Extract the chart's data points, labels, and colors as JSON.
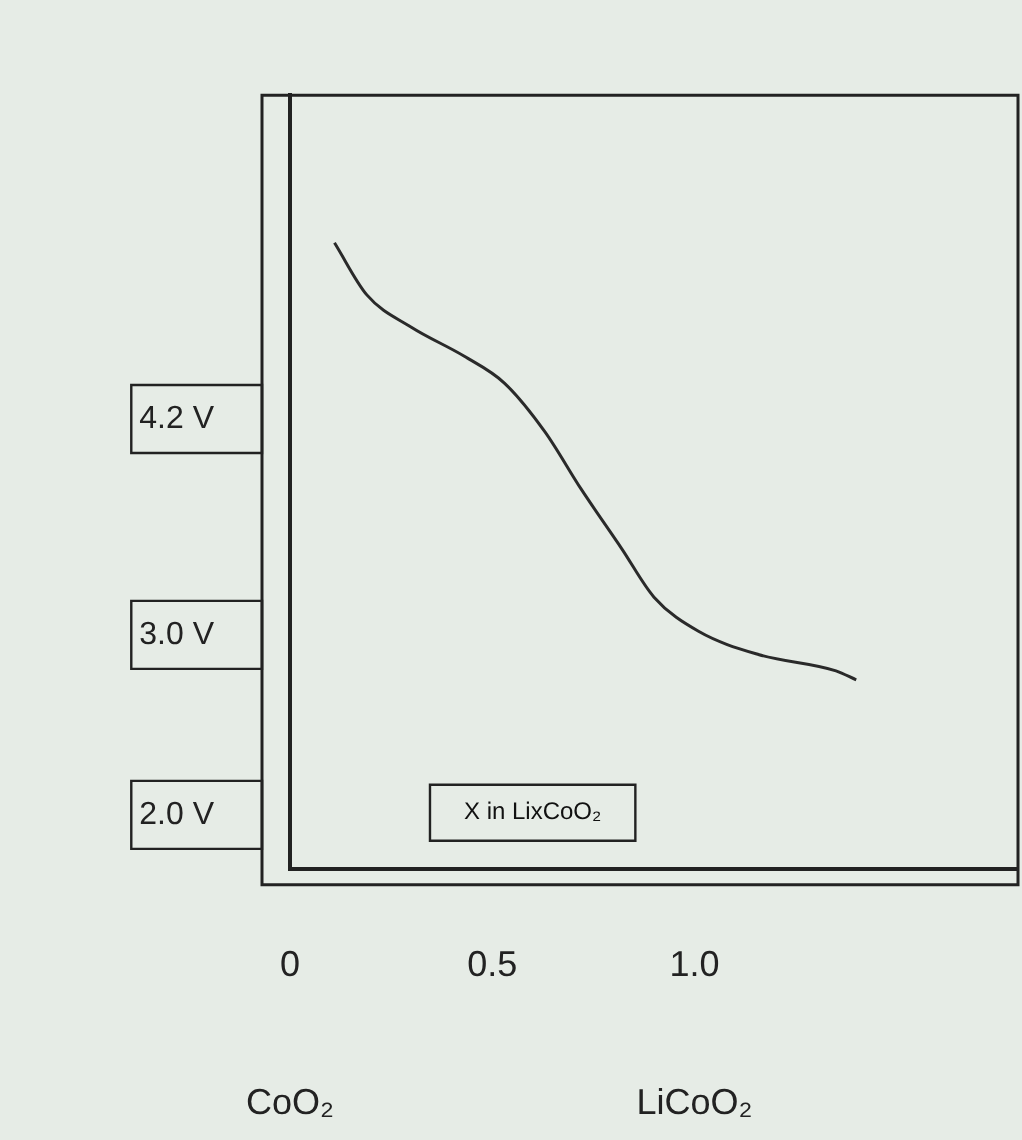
{
  "chart_data": {
    "type": "line",
    "xlabel": "X in LixCoO₂",
    "x": [
      0.11,
      0.19,
      0.3,
      0.43,
      0.53,
      0.63,
      0.72,
      0.82,
      0.9,
      1.01,
      1.16,
      1.35,
      1.4
    ],
    "series": [
      {
        "color": "#2a2a2a",
        "values": [
          5.18,
          4.89,
          4.71,
          4.55,
          4.4,
          4.13,
          3.81,
          3.48,
          3.21,
          3.02,
          2.89,
          2.8,
          2.75
        ]
      }
    ],
    "xlim": [
      0,
      1.8
    ],
    "xticks": [
      0,
      0.5,
      {
        "value": 1,
        "label": "1.0"
      }
    ],
    "ylim": [
      1.7,
      6.0
    ],
    "yticks": [
      {
        "value": 2,
        "label": "2.0 V"
      },
      {
        "value": 3,
        "label": "3.0 V"
      },
      {
        "value": 4.2,
        "label": "4.2 V"
      }
    ],
    "annotations": [
      "CoO₂",
      "LiCoO₂"
    ],
    "grid": false,
    "legend": false,
    "marker": "none",
    "line_style": "solid"
  }
}
